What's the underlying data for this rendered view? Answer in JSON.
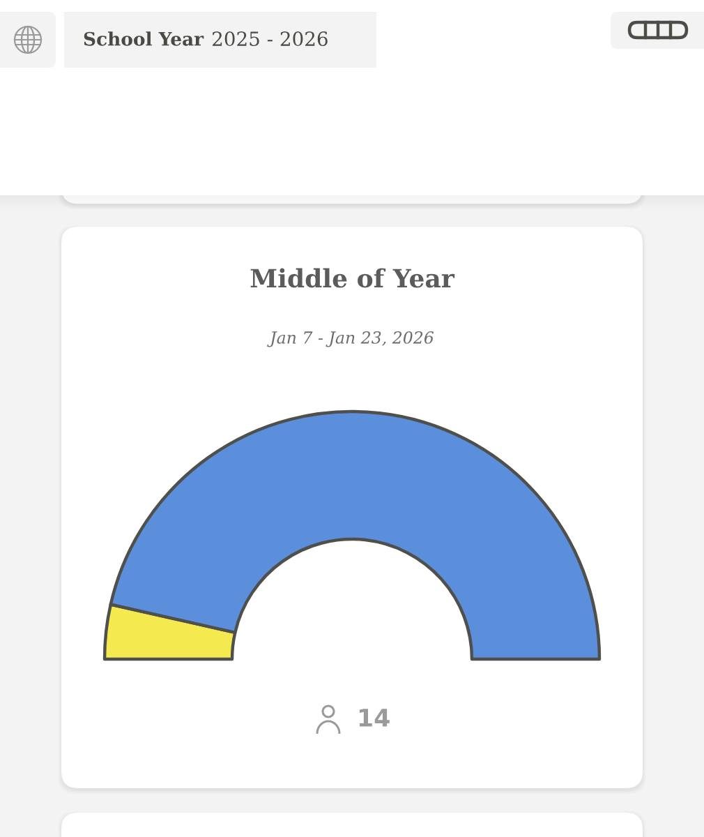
{
  "chart_data": {
    "type": "donut",
    "title": "Middle of Year",
    "subtitle": "Jan 7 - Jan 23, 2026",
    "categories": [
      null,
      null
    ],
    "values": [
      7.1,
      92.9
    ],
    "colors": [
      "#f4e94f",
      "#5b8edb"
    ],
    "annotations": [
      "School Year",
      "2025 - 2026",
      "14"
    ]
  }
}
